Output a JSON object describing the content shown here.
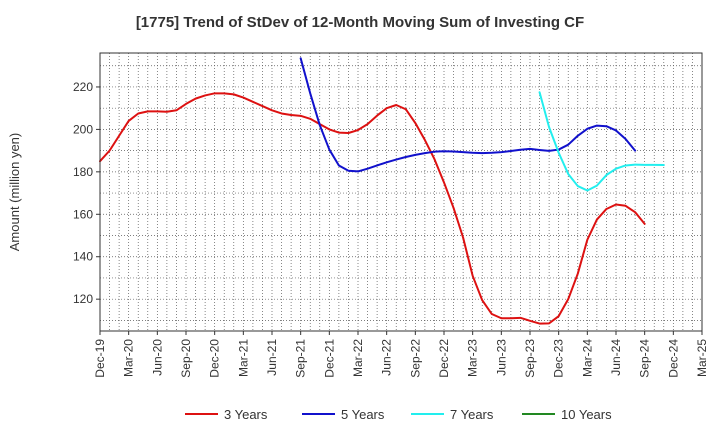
{
  "chart_data": {
    "type": "line",
    "title": "[1775]  Trend of StDev of 12-Month Moving Sum of Investing CF",
    "ylabel": "Amount (million yen)",
    "xlabel": "",
    "ylim": [
      105,
      236
    ],
    "yticks": [
      120,
      140,
      160,
      180,
      200,
      220
    ],
    "xtick_labels": [
      "Dec-19",
      "Mar-20",
      "Jun-20",
      "Sep-20",
      "Dec-20",
      "Mar-21",
      "Jun-21",
      "Sep-21",
      "Dec-21",
      "Mar-22",
      "Jun-22",
      "Sep-22",
      "Dec-22",
      "Mar-23",
      "Jun-23",
      "Sep-23",
      "Dec-23",
      "Mar-24",
      "Jun-24",
      "Sep-24",
      "Dec-24",
      "Mar-25"
    ],
    "x_start": "Dec-19",
    "x_months": 63,
    "grid": true,
    "legend_position": "bottom",
    "series": [
      {
        "name": "3 Years",
        "color": "#dd1111",
        "start_month_index": 0,
        "values": [
          185,
          190,
          197,
          204,
          207.5,
          208.5,
          208.5,
          208.3,
          209,
          212,
          214.5,
          216,
          217,
          217,
          216.5,
          215,
          213,
          211,
          209,
          207.5,
          206.8,
          206.4,
          205,
          202.5,
          200,
          198.5,
          198.3,
          199.7,
          202.5,
          206.5,
          210,
          211.5,
          209.5,
          203,
          195,
          186,
          175,
          163,
          149,
          131,
          119.5,
          113,
          111,
          111,
          111.2,
          109.8,
          108.5,
          108.6,
          112,
          120,
          132,
          148,
          157.5,
          162.5,
          164.6,
          164,
          161,
          155.5
        ]
      },
      {
        "name": "5 Years",
        "color": "#1111cc",
        "start_month_index": 21,
        "values": [
          233.5,
          217,
          202,
          190.5,
          183,
          180.5,
          180.2,
          181.5,
          183,
          184.5,
          185.8,
          187,
          188,
          188.8,
          189.5,
          189.7,
          189.6,
          189.3,
          189,
          188.8,
          189,
          189.3,
          189.8,
          190.4,
          190.8,
          190.3,
          189.9,
          190.5,
          192.8,
          197,
          200.3,
          201.8,
          201.5,
          199.5,
          195.5,
          190
        ]
      },
      {
        "name": "7 Years",
        "color": "#22eeee",
        "start_month_index": 46,
        "values": [
          217.5,
          201,
          189,
          179,
          173.3,
          171.2,
          173.5,
          178.5,
          181.5,
          183,
          183.4,
          183.3,
          183.3,
          183.2
        ]
      },
      {
        "name": "10 Years",
        "color": "#228822",
        "start_month_index": 0,
        "values": []
      }
    ]
  }
}
